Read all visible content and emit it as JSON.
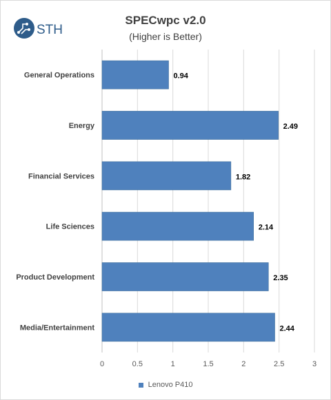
{
  "logo": {
    "text": "STH",
    "icon": "sth-circuit-logo-icon",
    "color": "#2e5c8a"
  },
  "chart_data": {
    "type": "bar",
    "orientation": "horizontal",
    "title": "SPECwpc v2.0",
    "subtitle": "(Higher is Better)",
    "categories": [
      "General Operations",
      "Energy",
      "Financial Services",
      "Life Sciences",
      "Product Development",
      "Media/Entertainment"
    ],
    "series": [
      {
        "name": "Lenovo P410",
        "values": [
          0.94,
          2.49,
          1.82,
          2.14,
          2.35,
          2.44
        ],
        "color": "#4f81bd"
      }
    ],
    "data_labels": [
      "0.94",
      "2.49",
      "1.82",
      "2.14",
      "2.35",
      "2.44"
    ],
    "xlim": [
      0,
      3
    ],
    "xticks": [
      0,
      0.5,
      1,
      1.5,
      2,
      2.5,
      3
    ],
    "xtick_labels": [
      "0",
      "0.5",
      "1",
      "1.5",
      "2",
      "2.5",
      "3"
    ],
    "grid": "vertical",
    "legend": "bottom"
  }
}
